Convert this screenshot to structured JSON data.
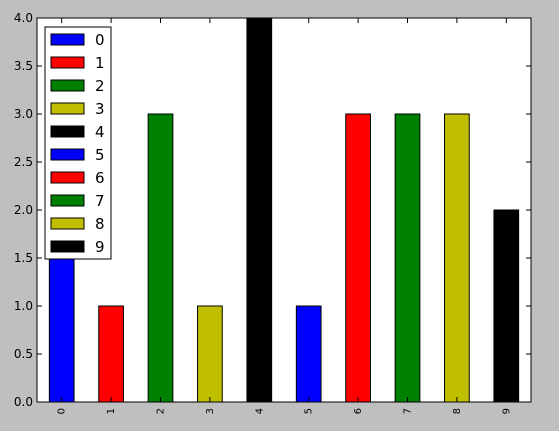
{
  "chart_data": {
    "type": "bar",
    "categories": [
      "0",
      "1",
      "2",
      "3",
      "4",
      "5",
      "6",
      "7",
      "8",
      "9"
    ],
    "values": [
      2,
      1,
      3,
      1,
      4,
      1,
      3,
      3,
      3,
      2
    ],
    "colors": [
      "#0000ff",
      "#ff0000",
      "#008000",
      "#bfbf00",
      "#000000",
      "#0000ff",
      "#ff0000",
      "#008000",
      "#bfbf00",
      "#000000"
    ],
    "legend": {
      "placement": "top-left",
      "entries": [
        "0",
        "1",
        "2",
        "3",
        "4",
        "5",
        "6",
        "7",
        "8",
        "9"
      ]
    },
    "yticks": [
      "0.0",
      "0.5",
      "1.0",
      "1.5",
      "2.0",
      "2.5",
      "3.0",
      "3.5",
      "4.0"
    ],
    "ylim": [
      0,
      4
    ],
    "grid": false,
    "background": "#ffffff",
    "figure_background": "#bfbfbf"
  }
}
